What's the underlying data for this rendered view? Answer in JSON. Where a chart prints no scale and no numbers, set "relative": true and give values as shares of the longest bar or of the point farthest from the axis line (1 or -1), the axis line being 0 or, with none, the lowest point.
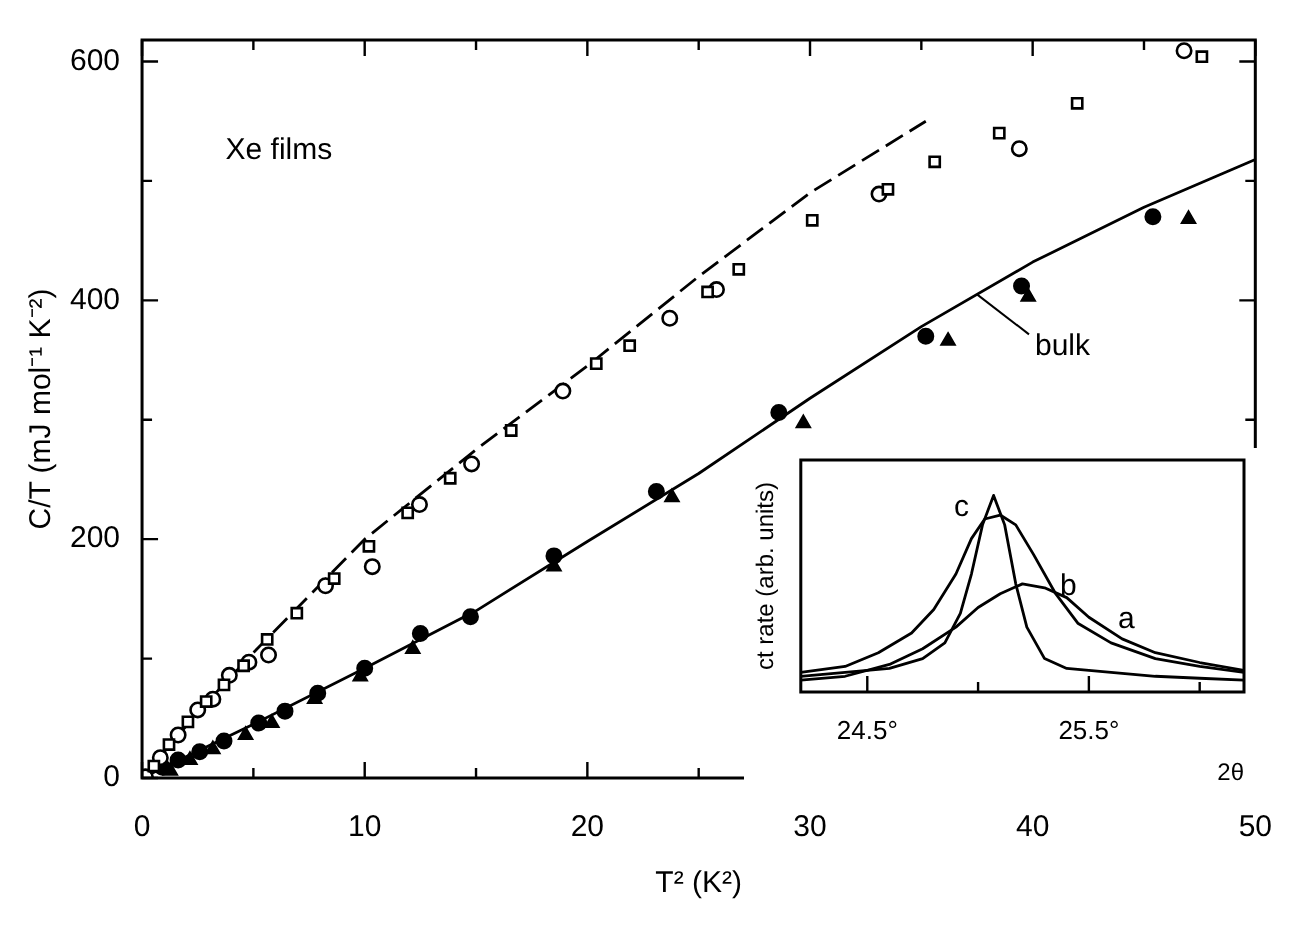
{
  "chart_data": [
    {
      "type": "scatter",
      "xlabel": "T² (K²)",
      "ylabel": "C/T (mJ mol⁻¹ K⁻²)",
      "xlim": [
        0,
        50
      ],
      "ylim": [
        0,
        618
      ],
      "xticks": [
        0,
        {
          "value": 5,
          "label": null
        },
        10,
        {
          "value": 15,
          "label": null
        },
        20,
        {
          "value": 25,
          "label": null
        },
        30,
        {
          "value": 35,
          "label": null
        },
        40,
        {
          "value": 45,
          "label": null
        },
        50
      ],
      "yticks": [
        0,
        {
          "value": 100,
          "label": null
        },
        200,
        {
          "value": 300,
          "label": null
        },
        400,
        {
          "value": 500,
          "label": null
        },
        600
      ],
      "legend": false,
      "annotations": [
        "Xe films",
        {
          "text": "bulk",
          "x": 37.5,
          "y": 405
        }
      ],
      "series": [
        {
          "type": "scatter",
          "marker": "square",
          "color": "#ffffff",
          "x": [
            0.53,
            1.21,
            2.06,
            2.88,
            3.68,
            4.56,
            5.62,
            6.95,
            8.63,
            10.19,
            11.93,
            13.84,
            16.58,
            20.4,
            21.9,
            25.4,
            26.8,
            30.1,
            33.5,
            35.6,
            38.5,
            42.0,
            47.6
          ],
          "values": [
            10,
            28,
            47,
            64,
            78,
            94,
            116,
            138,
            167,
            194,
            222,
            251,
            291,
            347,
            362,
            407,
            426,
            467,
            493,
            516,
            540,
            565,
            604
          ]
        },
        {
          "type": "scatter",
          "marker": "circle",
          "color": "#ffffff",
          "x": [
            0.15,
            0.82,
            1.62,
            2.5,
            3.18,
            3.92,
            4.8,
            5.68,
            8.24,
            10.34,
            12.46,
            14.8,
            18.9,
            23.7,
            25.8,
            33.1,
            39.4,
            46.8
          ],
          "values": [
            1,
            17,
            36,
            57,
            66,
            86,
            97,
            103,
            161,
            177,
            229,
            263,
            324,
            385,
            409,
            489,
            527,
            609
          ]
        },
        {
          "type": "scatter",
          "marker": "circle",
          "color": "#000000",
          "x": [
            0.91,
            1.62,
            2.59,
            3.68,
            5.24,
            6.42,
            7.89,
            10.0,
            12.5,
            14.75,
            18.5,
            23.1,
            28.6,
            35.2,
            39.5,
            45.4
          ],
          "values": [
            9,
            15,
            22,
            31,
            46,
            56,
            71,
            92,
            121,
            135,
            186,
            240,
            306,
            370,
            412,
            470
          ]
        },
        {
          "type": "scatter",
          "marker": "triangle",
          "color": "#000000",
          "x": [
            1.27,
            2.15,
            3.18,
            4.65,
            5.83,
            7.75,
            9.8,
            12.16,
            18.5,
            23.8,
            29.7,
            36.2,
            39.8,
            47.0
          ],
          "values": [
            6,
            15,
            24,
            36,
            46,
            66,
            85,
            108,
            177,
            235,
            297,
            366,
            403,
            468
          ]
        },
        {
          "type": "line",
          "line_style": "dashed",
          "color": "#000000",
          "x": [
            0,
            2.5,
            5,
            10,
            15,
            20,
            25,
            30,
            35.2
          ],
          "values": [
            0,
            55,
            105,
            200,
            275,
            345,
            420,
            490,
            550
          ]
        },
        {
          "type": "line",
          "line_style": "solid",
          "color": "#000000",
          "x": [
            0,
            5,
            10,
            15,
            20,
            25,
            30,
            35,
            40,
            45,
            50
          ],
          "values": [
            0,
            45,
            92,
            140,
            198,
            255,
            318,
            378,
            432,
            478,
            518
          ]
        }
      ]
    },
    {
      "type": "line",
      "relative": true,
      "xlabel": "2θ",
      "ylabel": "ct rate (arb. units)",
      "xlim": [
        24.2,
        26.2
      ],
      "xticks": [
        {
          "value": 24.5,
          "label": "24.5°"
        },
        {
          "value": 25,
          "label": null
        },
        {
          "value": 25.5,
          "label": "25.5°"
        },
        {
          "value": 26,
          "label": null
        }
      ],
      "legend": false,
      "series": [
        {
          "name": "a",
          "color": "#000000",
          "x": [
            24.2,
            24.4,
            24.6,
            24.75,
            24.9,
            25.0,
            25.1,
            25.2,
            25.3,
            25.4,
            25.5,
            25.65,
            25.8,
            26.0,
            26.2
          ],
          "values": [
            0.06,
            0.08,
            0.14,
            0.22,
            0.33,
            0.43,
            0.5,
            0.55,
            0.53,
            0.48,
            0.38,
            0.27,
            0.2,
            0.15,
            0.11
          ]
        },
        {
          "name": "b",
          "color": "#000000",
          "x": [
            24.2,
            24.4,
            24.55,
            24.7,
            24.8,
            24.9,
            24.97,
            25.03,
            25.1,
            25.17,
            25.25,
            25.35,
            25.45,
            25.6,
            25.8,
            26.0,
            26.2
          ],
          "values": [
            0.1,
            0.13,
            0.2,
            0.3,
            0.42,
            0.6,
            0.78,
            0.88,
            0.9,
            0.85,
            0.7,
            0.5,
            0.35,
            0.25,
            0.17,
            0.13,
            0.1
          ]
        },
        {
          "name": "c",
          "color": "#000000",
          "x": [
            24.2,
            24.4,
            24.6,
            24.75,
            24.85,
            24.92,
            24.97,
            25.02,
            25.07,
            25.12,
            25.17,
            25.22,
            25.3,
            25.4,
            25.6,
            25.8,
            26.0,
            26.2
          ],
          "values": [
            0.08,
            0.1,
            0.12,
            0.17,
            0.25,
            0.4,
            0.6,
            0.85,
            1.0,
            0.85,
            0.55,
            0.33,
            0.17,
            0.12,
            0.1,
            0.08,
            0.07,
            0.06
          ]
        }
      ]
    }
  ]
}
